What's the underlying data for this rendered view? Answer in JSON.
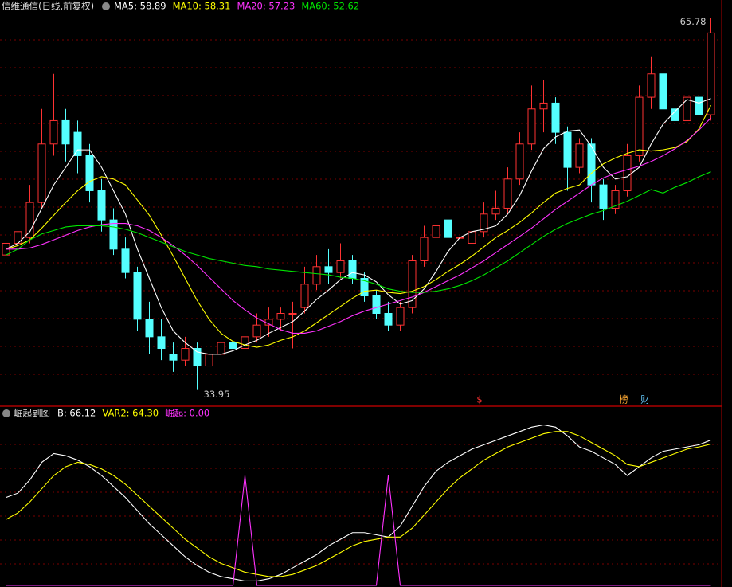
{
  "chart_data": [
    {
      "type": "candlestick",
      "title": "信维通信(日线,前复权)",
      "ylim": [
        32.9,
        66.3
      ],
      "grid": true,
      "candles": [
        [
          45.5,
          47.5,
          45,
          46.5
        ],
        [
          46.5,
          48.5,
          46,
          47.5
        ],
        [
          47,
          51.5,
          46.5,
          50
        ],
        [
          50,
          58,
          49.5,
          55
        ],
        [
          55,
          61,
          54,
          57
        ],
        [
          57,
          58,
          53.5,
          55
        ],
        [
          56,
          57,
          52.5,
          54
        ],
        [
          54,
          55,
          50,
          51
        ],
        [
          51,
          52,
          47.5,
          48.5
        ],
        [
          48.5,
          49.5,
          45.5,
          46
        ],
        [
          46,
          47,
          43.5,
          44
        ],
        [
          44,
          44.5,
          39,
          40
        ],
        [
          40,
          41.5,
          37,
          38.5
        ],
        [
          38.5,
          40,
          36.5,
          37.5
        ],
        [
          37,
          38,
          35.5,
          36.5
        ],
        [
          36.5,
          38.5,
          36,
          37.5
        ],
        [
          37.5,
          38,
          33.95,
          36
        ],
        [
          36,
          37.5,
          35.5,
          37
        ],
        [
          37,
          39.5,
          36.5,
          38
        ],
        [
          38,
          39,
          36.5,
          37.5
        ],
        [
          37.5,
          39,
          37,
          38.5
        ],
        [
          38.5,
          40.5,
          38,
          39.5
        ],
        [
          39.5,
          41,
          38.5,
          40
        ],
        [
          40,
          41,
          39,
          40.5
        ],
        [
          40.5,
          41.5,
          37.5,
          40.5
        ],
        [
          41,
          44.5,
          40.5,
          43
        ],
        [
          43,
          45.5,
          42.5,
          44.5
        ],
        [
          44.5,
          46,
          43,
          44
        ],
        [
          44,
          46.5,
          43.5,
          45
        ],
        [
          45,
          45.5,
          43,
          43.5
        ],
        [
          43.5,
          44,
          41.5,
          42
        ],
        [
          42,
          42.5,
          40,
          40.5
        ],
        [
          40.5,
          41.5,
          39,
          39.5
        ],
        [
          39.5,
          41.5,
          39,
          41
        ],
        [
          41,
          45.5,
          40.5,
          45
        ],
        [
          45,
          48,
          44.5,
          47
        ],
        [
          47,
          49,
          46,
          48
        ],
        [
          48.5,
          49,
          46.5,
          47
        ],
        [
          47,
          48,
          45.5,
          47
        ],
        [
          46.5,
          48,
          46,
          47.5
        ],
        [
          47.5,
          50,
          47,
          49
        ],
        [
          49,
          51,
          48.5,
          49.5
        ],
        [
          49.5,
          53,
          49,
          52
        ],
        [
          52,
          56,
          51.5,
          55
        ],
        [
          55,
          60,
          54.5,
          58
        ],
        [
          58,
          60.5,
          56,
          58.5
        ],
        [
          58.5,
          59,
          55,
          56
        ],
        [
          56,
          56.5,
          51,
          53
        ],
        [
          53,
          55.5,
          52.5,
          55
        ],
        [
          55,
          55.5,
          50,
          51.5
        ],
        [
          51.5,
          52,
          48.5,
          49.5
        ],
        [
          49.5,
          51.5,
          49,
          51
        ],
        [
          51,
          55,
          50.5,
          54
        ],
        [
          54,
          60,
          53.5,
          59
        ],
        [
          59,
          62.5,
          58,
          61
        ],
        [
          61,
          61.5,
          57,
          58
        ],
        [
          58,
          59,
          56,
          57
        ],
        [
          57,
          60,
          56.5,
          59
        ],
        [
          59,
          59.5,
          56.5,
          57.5
        ],
        [
          57.5,
          65.78,
          57,
          64.5
        ]
      ],
      "up_color": "#ff3232",
      "down_color": "#54ffff",
      "max_label": 65.78,
      "min_label": 33.95,
      "markers": [
        "$",
        "榜",
        "财"
      ],
      "series": [
        {
          "name": "MA5",
          "label": "MA5: 58.89",
          "color": "#ffffff",
          "values": [
            46,
            46.5,
            47.5,
            49.5,
            51.5,
            53,
            54.5,
            54.5,
            53,
            51,
            49,
            46,
            43.5,
            41,
            39,
            38,
            37.2,
            37,
            37,
            37.3,
            37.8,
            38.2,
            38.8,
            39.3,
            39.8,
            40.7,
            41.7,
            42.5,
            43.4,
            44,
            43.8,
            43.2,
            42.1,
            41.3,
            41.6,
            42.6,
            44.1,
            45.8,
            47,
            47.5,
            47.7,
            48,
            49,
            50.6,
            52.7,
            54.6,
            55.6,
            56.1,
            56.2,
            54.8,
            53,
            52,
            52.2,
            53,
            55,
            56.7,
            57.8,
            58.8,
            58.5,
            58.89
          ]
        },
        {
          "name": "MA10",
          "label": "MA10: 58.31",
          "color": "#ffff00",
          "values": [
            46,
            46.3,
            46.8,
            47.8,
            48.9,
            50,
            51,
            51.8,
            52.2,
            52,
            51.5,
            50.2,
            48.9,
            47.2,
            45.4,
            43.5,
            41.6,
            40,
            38.8,
            38.1,
            37.8,
            37.6,
            37.8,
            38.2,
            38.5,
            39,
            39.7,
            40.4,
            41.1,
            41.8,
            42.4,
            42.5,
            42.3,
            42.2,
            42.4,
            42.8,
            43.4,
            44.1,
            44.7,
            45.4,
            46.2,
            47,
            47.6,
            48.3,
            49.1,
            50,
            50.8,
            51.2,
            51.5,
            52.5,
            53.3,
            53.8,
            54.2,
            54.5,
            54.4,
            54.5,
            54.7,
            55.2,
            56.3,
            58.31
          ]
        },
        {
          "name": "MA20",
          "label": "MA20: 57.23",
          "color": "#ff33ff",
          "values": [
            46,
            46,
            46.1,
            46.4,
            46.8,
            47.2,
            47.6,
            47.9,
            48.1,
            48.2,
            48.2,
            48,
            47.6,
            47,
            46.3,
            45.5,
            44.6,
            43.6,
            42.6,
            41.6,
            40.8,
            40.1,
            39.6,
            39.1,
            38.8,
            38.8,
            39,
            39.4,
            39.8,
            40.3,
            40.7,
            41,
            41.3,
            41.6,
            41.9,
            42.3,
            42.8,
            43.3,
            43.8,
            44.4,
            45,
            45.7,
            46.4,
            47.1,
            47.8,
            48.6,
            49.4,
            50.1,
            50.8,
            51.5,
            52.1,
            52.5,
            52.8,
            53.1,
            53.5,
            54,
            54.6,
            55.3,
            56.2,
            57.23
          ]
        },
        {
          "name": "MA60",
          "label": "MA60: 52.62",
          "color": "#00e600",
          "values": [
            45.5,
            46,
            46.8,
            47.3,
            47.6,
            47.9,
            48,
            48,
            48,
            47.9,
            47.7,
            47.4,
            47,
            46.6,
            46.2,
            45.8,
            45.5,
            45.2,
            45,
            44.8,
            44.6,
            44.5,
            44.3,
            44.2,
            44.1,
            44,
            43.9,
            43.8,
            43.6,
            43.5,
            43.3,
            43,
            42.6,
            42.4,
            42.3,
            42.3,
            42.4,
            42.6,
            42.9,
            43.3,
            43.8,
            44.4,
            45,
            45.7,
            46.4,
            47.1,
            47.7,
            48.2,
            48.6,
            49,
            49.3,
            49.7,
            50.1,
            50.6,
            51.1,
            50.8,
            51.3,
            51.7,
            52.2,
            52.62
          ]
        }
      ]
    },
    {
      "type": "line",
      "title": "崛起副图",
      "ylim": [
        0,
        75
      ],
      "series": [
        {
          "name": "B",
          "label": "B: 66.12",
          "color": "#ffffff",
          "values": [
            40,
            42,
            48,
            56,
            60,
            59,
            57,
            54,
            50,
            45,
            40,
            34,
            28,
            23,
            18,
            13,
            9,
            6,
            4,
            3,
            2,
            2,
            3,
            5,
            8,
            11,
            14,
            18,
            21,
            24,
            24,
            23,
            22,
            27,
            36,
            45,
            52,
            56,
            59,
            62,
            64,
            66,
            68,
            70,
            72,
            73,
            72,
            68,
            63,
            61,
            58,
            55,
            50,
            54,
            58,
            61,
            62,
            63,
            64,
            66.12
          ]
        },
        {
          "name": "VAR2",
          "label": "VAR2: 64.30",
          "color": "#ffff00",
          "values": [
            30,
            33,
            38,
            44,
            50,
            54,
            56,
            55,
            53,
            50,
            46,
            41,
            36,
            31,
            26,
            21,
            17,
            13,
            10,
            8,
            6,
            5,
            4,
            4,
            5,
            7,
            9,
            12,
            15,
            18,
            20,
            21,
            22,
            22,
            26,
            32,
            38,
            44,
            49,
            53,
            57,
            60,
            63,
            65,
            67,
            69,
            70,
            70,
            68,
            65,
            62,
            59,
            55,
            54,
            56,
            58,
            60,
            62,
            63,
            64.3
          ]
        },
        {
          "name": "崛起",
          "label": "崛起: 0.00",
          "color": "#ff33ff",
          "values": [
            0,
            0,
            0,
            0,
            0,
            0,
            0,
            0,
            0,
            0,
            0,
            0,
            0,
            0,
            0,
            0,
            0,
            0,
            0,
            0,
            50,
            0,
            0,
            0,
            0,
            0,
            0,
            0,
            0,
            0,
            0,
            0,
            50,
            0,
            0,
            0,
            0,
            0,
            0,
            0,
            0,
            0,
            0,
            0,
            0,
            0,
            0,
            0,
            0,
            0,
            0,
            0,
            0,
            0,
            0,
            0,
            0,
            0,
            0,
            0
          ]
        }
      ]
    }
  ]
}
